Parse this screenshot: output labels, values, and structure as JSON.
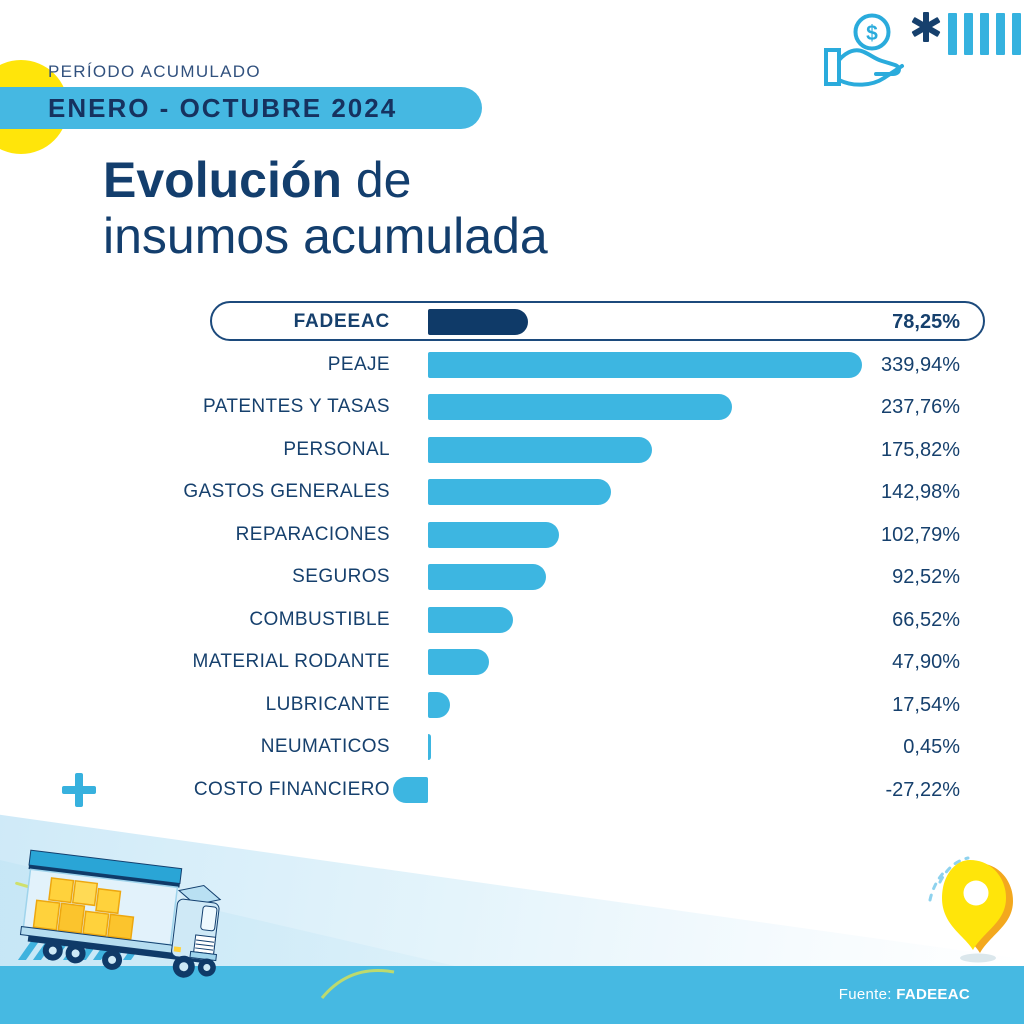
{
  "header": {
    "kicker": "PERÍODO ACUMULADO",
    "banner": "ENERO - OCTUBRE 2024"
  },
  "title": {
    "line1_bold": "Evolución",
    "line1_rest": " de",
    "line2": "insumos acumulada"
  },
  "icons": {
    "top_right": [
      "hand-coin-icon",
      "asterisk-icon",
      "tally-bars-icon"
    ],
    "bottom": [
      "plus-icon",
      "hatch-marks",
      "truck-illustration",
      "location-pin-icon"
    ]
  },
  "chart_data": {
    "type": "bar",
    "orientation": "horizontal",
    "title": "Evolución de insumos acumulada",
    "subtitle": "PERÍODO ACUMULADO ENERO - OCTUBRE 2024",
    "unit": "%",
    "grid": false,
    "legend": "none",
    "xlim": [
      -27.22,
      339.94
    ],
    "highlight_index": 0,
    "categories": [
      "FADEEAC",
      "PEAJE",
      "PATENTES Y TASAS",
      "PERSONAL",
      "GASTOS GENERALES",
      "REPARACIONES",
      "SEGUROS",
      "COMBUSTIBLE",
      "MATERIAL RODANTE",
      "LUBRICANTE",
      "NEUMATICOS",
      "COSTO FINANCIERO"
    ],
    "values": [
      78.25,
      339.94,
      237.76,
      175.82,
      142.98,
      102.79,
      92.52,
      66.52,
      47.9,
      17.54,
      0.45,
      -27.22
    ],
    "value_labels": [
      "78,25%",
      "339,94%",
      "237,76%",
      "175,82%",
      "142,98%",
      "102,79%",
      "92,52%",
      "66,52%",
      "47,90%",
      "17,54%",
      "0,45%",
      "-27,22%"
    ],
    "colors": {
      "bar": "#3db6e1",
      "highlight_bar": "#0f3a68",
      "text": "#16406d"
    }
  },
  "footer": {
    "prefix": "Fuente: ",
    "source": "FADEEAC"
  },
  "palette": {
    "navy": "#16406d",
    "light_blue": "#3db6e1",
    "yellow": "#ffe50a",
    "orange": "#f3a81e",
    "footer_blue": "#46b9e2"
  }
}
